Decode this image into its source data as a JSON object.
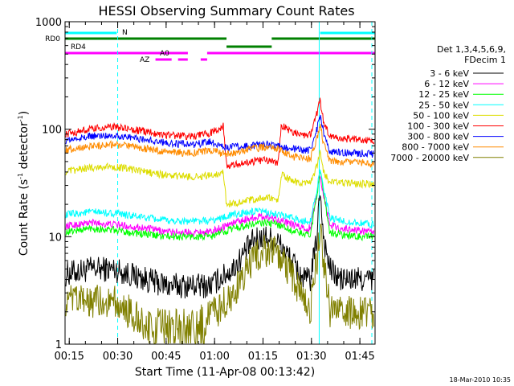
{
  "chart_data": {
    "type": "line",
    "title": "HESSI Observing Summary Count Rates",
    "xlabel": "Start Time (11-Apr-08 00:13:42)",
    "ylabel_pre": "Count Rate (s",
    "ylabel_sup1": "-1",
    "ylabel_mid": " detector",
    "ylabel_sup2": "-1",
    "ylabel_post": ")",
    "yscale": "log",
    "ylim": [
      1,
      1000
    ],
    "xlim_minutes": [
      0,
      96
    ],
    "x_tick_labels": [
      "00:15",
      "00:30",
      "00:45",
      "01:00",
      "01:15",
      "01:30",
      "01:45"
    ],
    "x_ticks_minutes": [
      1.3,
      16.3,
      31.3,
      46.3,
      61.3,
      76.3,
      91.3
    ],
    "y_tick_labels": [
      "1",
      "10",
      "100",
      "1000"
    ],
    "y_ticks": [
      1,
      10,
      100,
      1000
    ],
    "legend_title_1": "Det 1,3,4,5,6,9,",
    "legend_title_2": "FDecim 1",
    "series": [
      {
        "name": "3 - 6 keV",
        "color": "#000000",
        "x": [
          0,
          8,
          15,
          25,
          32,
          40,
          45,
          52,
          58,
          62,
          66,
          70,
          74,
          76,
          78,
          79,
          80,
          82,
          85,
          90,
          95
        ],
        "values": [
          4.5,
          5,
          5,
          4,
          3.5,
          3.5,
          3.5,
          5,
          9,
          10,
          9,
          6,
          4,
          4,
          10,
          30,
          10,
          5,
          4,
          4,
          4
        ]
      },
      {
        "name": "6 - 12 keV",
        "color": "#ff00ff",
        "x": [
          0,
          8,
          15,
          25,
          32,
          40,
          45,
          52,
          58,
          62,
          66,
          70,
          74,
          76,
          78,
          79,
          80,
          82,
          85,
          90,
          95
        ],
        "values": [
          12.5,
          13.5,
          13,
          12,
          11,
          11,
          11,
          13.5,
          15,
          15.5,
          14.5,
          13,
          12,
          12,
          25,
          38,
          25,
          13,
          12,
          11.5,
          11
        ]
      },
      {
        "name": "12 - 25 keV",
        "color": "#00ff00",
        "x": [
          0,
          8,
          15,
          25,
          32,
          40,
          45,
          52,
          58,
          62,
          66,
          70,
          74,
          76,
          78,
          79,
          80,
          82,
          85,
          90,
          95
        ],
        "values": [
          11,
          12,
          11.5,
          10.5,
          10,
          10,
          10,
          12,
          13,
          13.5,
          13,
          11.5,
          10.5,
          10.5,
          25,
          42,
          25,
          11,
          10.5,
          10,
          10
        ]
      },
      {
        "name": "25 - 50 keV",
        "color": "#00ffff",
        "x": [
          0,
          8,
          15,
          25,
          32,
          40,
          45,
          52,
          58,
          62,
          66,
          70,
          74,
          76,
          78,
          79,
          80,
          82,
          85,
          90,
          95
        ],
        "values": [
          16,
          17,
          16.5,
          15,
          14,
          14,
          14,
          16,
          17,
          17,
          16,
          15,
          14,
          14,
          28,
          42,
          28,
          15,
          14,
          13.5,
          13
        ]
      },
      {
        "name": "50 - 100 keV",
        "color": "#dddd00",
        "x": [
          0,
          8,
          15,
          25,
          32,
          40,
          45,
          49,
          50,
          58,
          62,
          66,
          67,
          70,
          74,
          76,
          78,
          79,
          80,
          82,
          85,
          90,
          95
        ],
        "values": [
          40,
          44,
          45,
          40,
          37,
          36,
          37,
          40,
          20,
          22,
          23,
          22,
          38,
          33,
          31,
          31,
          45,
          62,
          40,
          32,
          32,
          31,
          31
        ]
      },
      {
        "name": "100 - 300 keV",
        "color": "#ff0000",
        "x": [
          0,
          8,
          15,
          25,
          32,
          40,
          45,
          49,
          50,
          58,
          62,
          66,
          67,
          70,
          74,
          76,
          78,
          79,
          80,
          82,
          85,
          90,
          95
        ],
        "values": [
          90,
          100,
          105,
          95,
          88,
          86,
          92,
          108,
          45,
          50,
          52,
          48,
          110,
          95,
          88,
          90,
          140,
          185,
          120,
          85,
          82,
          80,
          78
        ]
      },
      {
        "name": "300 - 800 keV",
        "color": "#0000ff",
        "x": [
          0,
          8,
          15,
          25,
          32,
          40,
          45,
          50,
          58,
          62,
          66,
          70,
          74,
          76,
          78,
          79,
          80,
          82,
          85,
          90,
          95
        ],
        "values": [
          78,
          86,
          88,
          80,
          74,
          72,
          76,
          68,
          70,
          72,
          70,
          66,
          64,
          64,
          100,
          135,
          95,
          62,
          61,
          60,
          59
        ]
      },
      {
        "name": "800 - 7000 keV",
        "color": "#ff8c00",
        "x": [
          0,
          8,
          15,
          25,
          32,
          40,
          45,
          50,
          58,
          62,
          66,
          70,
          74,
          76,
          78,
          79,
          80,
          82,
          85,
          90,
          95
        ],
        "values": [
          64,
          70,
          72,
          66,
          61,
          60,
          64,
          58,
          66,
          68,
          65,
          56,
          53,
          53,
          80,
          110,
          75,
          51,
          50,
          49,
          48
        ]
      },
      {
        "name": "7000 - 20000 keV",
        "color": "#808000",
        "x": [
          0,
          5,
          10,
          15,
          20,
          25,
          30,
          35,
          40,
          45,
          50,
          55,
          58,
          62,
          66,
          70,
          74,
          76,
          78,
          79,
          80,
          82,
          85,
          90,
          95
        ],
        "values": [
          2.5,
          2.5,
          2.5,
          2.5,
          2.0,
          1.5,
          1.5,
          1.5,
          1.5,
          1.8,
          2.5,
          4.0,
          6.0,
          7.5,
          7.0,
          4.5,
          2.5,
          2.0,
          6.0,
          11,
          6.0,
          2.0,
          2.0,
          2.0,
          2.0
        ]
      }
    ],
    "flag_labels": {
      "n": "N",
      "rd0": "RD0",
      "rd4": "RD4",
      "ao": "A0",
      "az": "AZ"
    },
    "flag_colors": {
      "cyan": "#00ffff",
      "green": "#008000",
      "magenta": "#ff00ff"
    },
    "flags": {
      "n_cyan": [
        [
          0,
          16
        ],
        [
          79,
          96
        ]
      ],
      "rd0_green": [
        [
          0,
          50
        ],
        [
          64,
          96
        ]
      ],
      "rd0_green_low": [
        [
          50,
          64
        ]
      ],
      "rd4_magenta": [
        [
          0,
          38
        ],
        [
          44,
          96
        ]
      ],
      "ao_magenta": [
        [
          22,
          38
        ]
      ],
      "az_magenta": [
        [
          28,
          33
        ],
        [
          35,
          38
        ],
        [
          42,
          44
        ]
      ]
    },
    "cyan_solid_lines_min": [
      78.7
    ],
    "cyan_dashed_lines_min": [
      16.3,
      96
    ],
    "timestamp": "18-Mar-2010 10:35"
  }
}
